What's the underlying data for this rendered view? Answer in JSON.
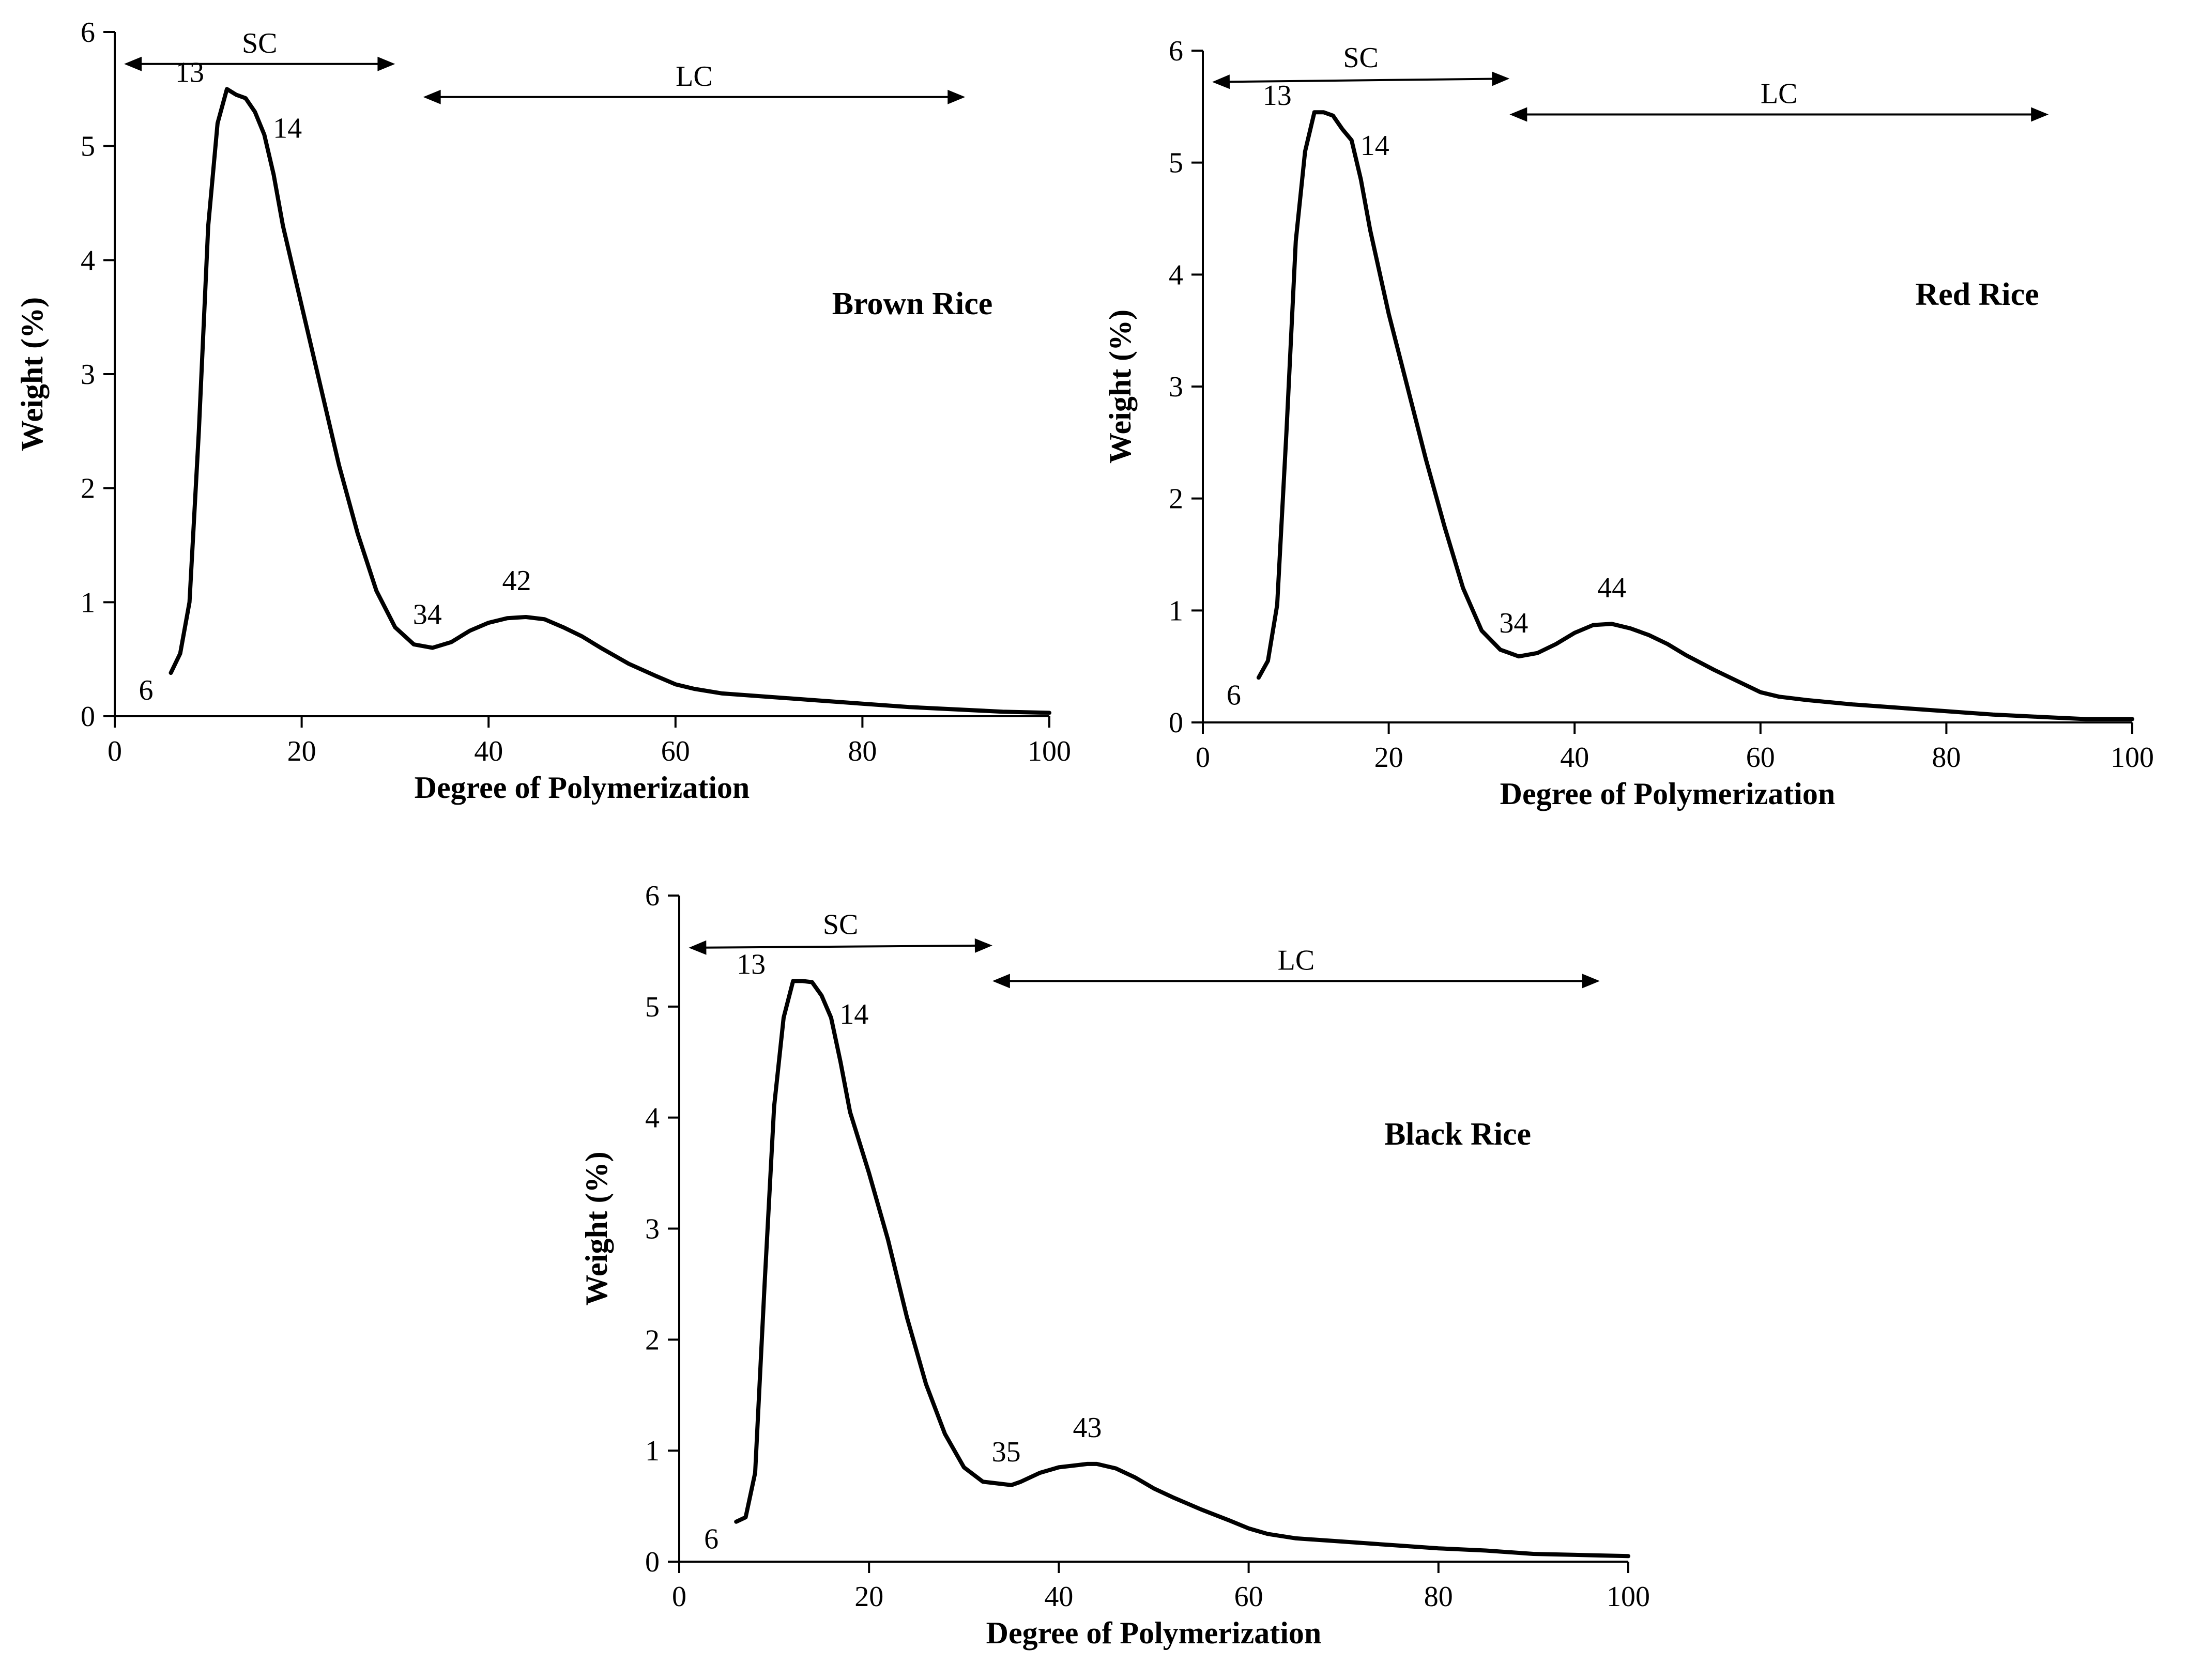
{
  "chart_data": [
    {
      "type": "line",
      "title": "Brown Rice",
      "xlabel": "Degree of Polymerization",
      "ylabel": "Weight (%)",
      "xlim": [
        0,
        100
      ],
      "ylim": [
        0,
        6
      ],
      "xticks": [
        0,
        20,
        40,
        60,
        80,
        100
      ],
      "yticks": [
        0,
        1,
        2,
        3,
        4,
        5,
        6
      ],
      "grid": false,
      "series": [
        {
          "name": "Brown Rice",
          "x": [
            6,
            7,
            8,
            9,
            10,
            11,
            12,
            13,
            14,
            15,
            16,
            17,
            18,
            20,
            22,
            24,
            26,
            28,
            30,
            32,
            34,
            36,
            38,
            40,
            42,
            44,
            46,
            48,
            50,
            52,
            55,
            58,
            60,
            62,
            65,
            70,
            75,
            80,
            85,
            90,
            95,
            100
          ],
          "y": [
            0.38,
            0.55,
            1.0,
            2.5,
            4.3,
            5.2,
            5.5,
            5.45,
            5.42,
            5.3,
            5.1,
            4.75,
            4.3,
            3.6,
            2.9,
            2.2,
            1.6,
            1.1,
            0.78,
            0.63,
            0.6,
            0.65,
            0.75,
            0.82,
            0.86,
            0.87,
            0.85,
            0.78,
            0.7,
            0.6,
            0.46,
            0.35,
            0.28,
            0.24,
            0.2,
            0.17,
            0.14,
            0.11,
            0.08,
            0.06,
            0.04,
            0.03
          ]
        }
      ],
      "annotations": [
        {
          "label": "6",
          "x": 6,
          "y": 0.38
        },
        {
          "label": "13",
          "x": 12,
          "y": 5.5
        },
        {
          "label": "14",
          "x": 14.5,
          "y": 5.4
        },
        {
          "label": "34",
          "x": 34,
          "y": 0.6
        },
        {
          "label": "42",
          "x": 43,
          "y": 0.87
        }
      ],
      "ranges": [
        {
          "label": "SC",
          "x_start": 1,
          "x_end": 30,
          "y_start": 5.72,
          "y_end": 5.72
        },
        {
          "label": "LC",
          "x_start": 33,
          "x_end": 91,
          "y_start": 5.43,
          "y_end": 5.43
        }
      ]
    },
    {
      "type": "line",
      "title": "Red Rice",
      "xlabel": "Degree of Polymerization",
      "ylabel": "Weight (%)",
      "xlim": [
        0,
        100
      ],
      "ylim": [
        0,
        6
      ],
      "xticks": [
        0,
        20,
        40,
        60,
        80,
        100
      ],
      "yticks": [
        0,
        1,
        2,
        3,
        4,
        5,
        6
      ],
      "grid": false,
      "series": [
        {
          "name": "Red Rice",
          "x": [
            6,
            7,
            8,
            9,
            10,
            11,
            12,
            13,
            14,
            15,
            16,
            17,
            18,
            20,
            22,
            24,
            26,
            28,
            30,
            32,
            34,
            36,
            38,
            40,
            42,
            44,
            46,
            48,
            50,
            52,
            55,
            58,
            60,
            62,
            65,
            70,
            75,
            80,
            85,
            90,
            95,
            100
          ],
          "y": [
            0.4,
            0.55,
            1.05,
            2.6,
            4.3,
            5.1,
            5.45,
            5.45,
            5.42,
            5.3,
            5.2,
            4.85,
            4.4,
            3.65,
            3.0,
            2.35,
            1.75,
            1.2,
            0.82,
            0.65,
            0.59,
            0.62,
            0.7,
            0.8,
            0.87,
            0.88,
            0.84,
            0.78,
            0.7,
            0.6,
            0.47,
            0.35,
            0.27,
            0.23,
            0.2,
            0.16,
            0.13,
            0.1,
            0.07,
            0.05,
            0.03,
            0.03
          ]
        }
      ],
      "annotations": [
        {
          "label": "6",
          "x": 6,
          "y": 0.4
        },
        {
          "label": "13",
          "x": 12,
          "y": 5.45
        },
        {
          "label": "14",
          "x": 14.5,
          "y": 5.4
        },
        {
          "label": "34",
          "x": 34,
          "y": 0.59
        },
        {
          "label": "44",
          "x": 44,
          "y": 0.88
        }
      ],
      "ranges": [
        {
          "label": "SC",
          "x_start": 1,
          "x_end": 33,
          "y_start": 5.72,
          "y_end": 5.75
        },
        {
          "label": "LC",
          "x_start": 33,
          "x_end": 91,
          "y_start": 5.43,
          "y_end": 5.43
        }
      ]
    },
    {
      "type": "line",
      "title": "Black Rice",
      "xlabel": "Degree of Polymerization",
      "ylabel": "Weight (%)",
      "xlim": [
        0,
        100
      ],
      "ylim": [
        0,
        6
      ],
      "xticks": [
        0,
        20,
        40,
        60,
        80,
        100
      ],
      "yticks": [
        0,
        1,
        2,
        3,
        4,
        5,
        6
      ],
      "grid": false,
      "series": [
        {
          "name": "Black Rice",
          "x": [
            6,
            7,
            8,
            9,
            10,
            11,
            12,
            13,
            14,
            15,
            16,
            17,
            18,
            20,
            22,
            24,
            26,
            28,
            30,
            32,
            34,
            35,
            36,
            38,
            40,
            42,
            43,
            44,
            46,
            48,
            50,
            52,
            55,
            58,
            60,
            62,
            65,
            70,
            75,
            80,
            85,
            90,
            95,
            100
          ],
          "y": [
            0.36,
            0.4,
            0.8,
            2.5,
            4.1,
            4.9,
            5.23,
            5.23,
            5.22,
            5.1,
            4.9,
            4.5,
            4.05,
            3.5,
            2.9,
            2.2,
            1.6,
            1.15,
            0.85,
            0.72,
            0.7,
            0.69,
            0.72,
            0.8,
            0.85,
            0.87,
            0.88,
            0.88,
            0.84,
            0.76,
            0.66,
            0.58,
            0.47,
            0.37,
            0.3,
            0.25,
            0.21,
            0.18,
            0.15,
            0.12,
            0.1,
            0.07,
            0.06,
            0.05
          ]
        }
      ],
      "annotations": [
        {
          "label": "6",
          "x": 6,
          "y": 0.36
        },
        {
          "label": "13",
          "x": 11.5,
          "y": 5.23
        },
        {
          "label": "14",
          "x": 14.5,
          "y": 5.18
        },
        {
          "label": "35",
          "x": 35,
          "y": 0.69
        },
        {
          "label": "43",
          "x": 43,
          "y": 0.88
        }
      ],
      "ranges": [
        {
          "label": "SC",
          "x_start": 1,
          "x_end": 33,
          "y_start": 5.53,
          "y_end": 5.55
        },
        {
          "label": "LC",
          "x_start": 33,
          "x_end": 97,
          "y_start": 5.23,
          "y_end": 5.23
        }
      ]
    }
  ]
}
